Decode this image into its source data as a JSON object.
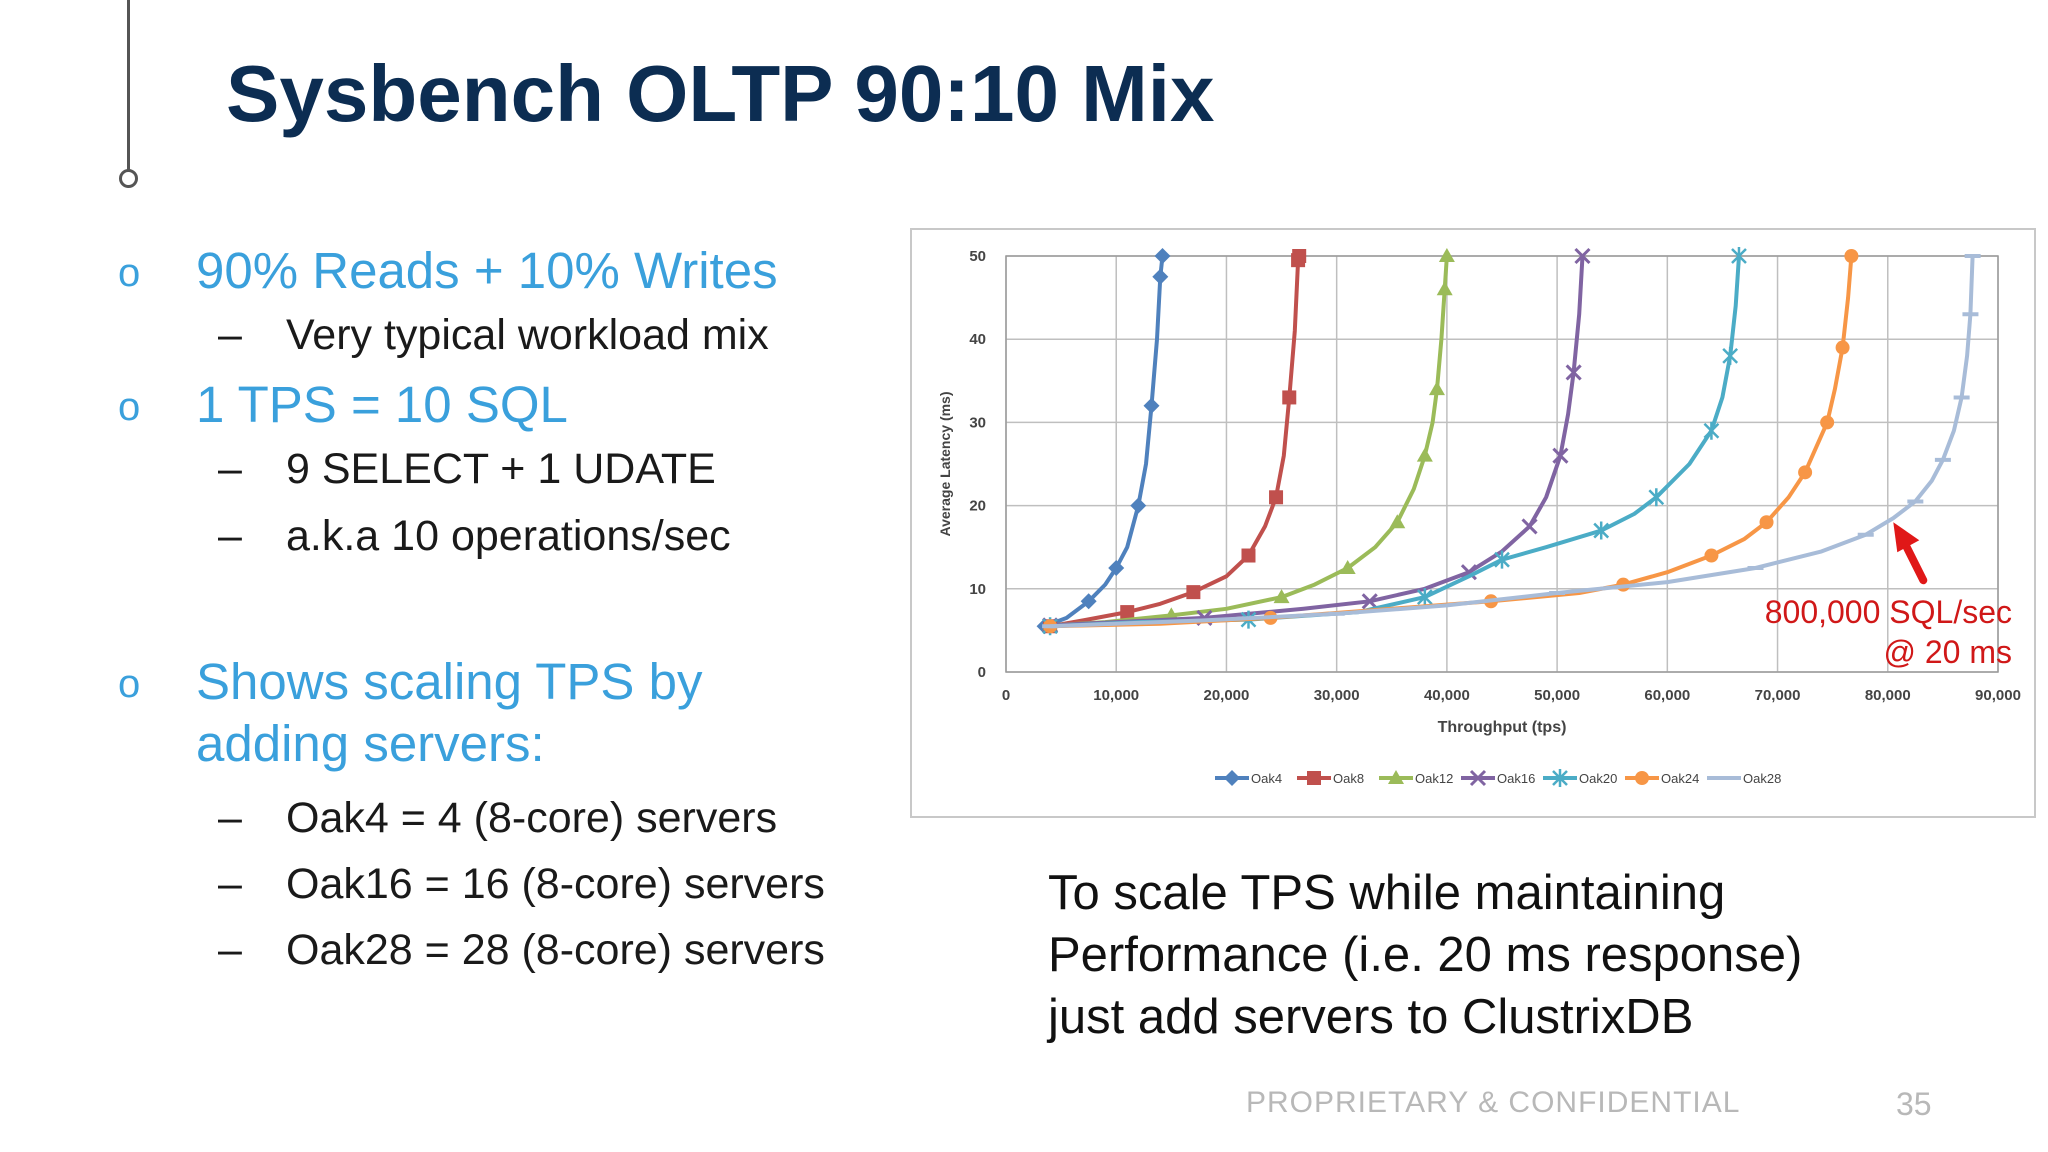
{
  "slide": {
    "title": "Sysbench OLTP 90:10 Mix",
    "bullets": [
      {
        "text": "90% Reads + 10% Writes",
        "subs": [
          "Very typical workload mix"
        ]
      },
      {
        "text": "1 TPS = 10 SQL",
        "subs": [
          "9 SELECT + 1 UDATE",
          "a.k.a 10 operations/sec"
        ]
      },
      {
        "text": "Shows scaling TPS by adding servers:",
        "subs": [
          "Oak4 = 4 (8-core) servers",
          "Oak16 = 16 (8-core) servers",
          "Oak28 = 28 (8-core) servers"
        ]
      }
    ],
    "bullet_marker": "o",
    "sub_marker": "–",
    "caption_lines": [
      "To scale TPS while maintaining",
      "Performance (i.e. 20 ms response)",
      "just add servers to ClustrixDB"
    ],
    "annotation_lines": [
      "800,000 SQL/sec",
      "@ 20 ms"
    ],
    "footer": "PROPRIETARY & CONFIDENTIAL",
    "page_number": "35",
    "colors": {
      "title": "#0c2d52",
      "bullet": "#3aa0dc",
      "annotation": "#d01818"
    }
  },
  "chart_data": {
    "type": "line",
    "xlabel": "Throughput (tps)",
    "ylabel": "Average Latency (ms)",
    "xlim": [
      0,
      90000
    ],
    "ylim": [
      0,
      50
    ],
    "xticks": [
      0,
      10000,
      20000,
      30000,
      40000,
      50000,
      60000,
      70000,
      80000,
      90000
    ],
    "xtick_labels": [
      "0",
      "10,000",
      "20,000",
      "30,000",
      "40,000",
      "50,000",
      "60,000",
      "70,000",
      "80,000",
      "90,000"
    ],
    "yticks": [
      0,
      10,
      20,
      30,
      40,
      50
    ],
    "ytick_labels": [
      "0",
      "10",
      "20",
      "30",
      "40",
      "50"
    ],
    "grid": true,
    "legend": "bottom",
    "series": [
      {
        "name": "Oak4",
        "color": "#4f81bd",
        "marker": "diamond",
        "points": [
          [
            3500,
            5.5
          ],
          [
            5500,
            6.5
          ],
          [
            7500,
            8.5
          ],
          [
            9000,
            10.5
          ],
          [
            10000,
            12.5
          ],
          [
            11000,
            15
          ],
          [
            12000,
            20
          ],
          [
            12700,
            25
          ],
          [
            13200,
            32
          ],
          [
            13700,
            40
          ],
          [
            14000,
            47.5
          ],
          [
            14200,
            50
          ]
        ]
      },
      {
        "name": "Oak8",
        "color": "#c0504d",
        "marker": "square",
        "points": [
          [
            4000,
            5.5
          ],
          [
            7000,
            6.2
          ],
          [
            11000,
            7.2
          ],
          [
            14000,
            8.2
          ],
          [
            17000,
            9.6
          ],
          [
            20000,
            11.5
          ],
          [
            22000,
            14
          ],
          [
            23500,
            17.5
          ],
          [
            24500,
            21
          ],
          [
            25200,
            26
          ],
          [
            25700,
            33
          ],
          [
            26200,
            41
          ],
          [
            26500,
            49.5
          ],
          [
            26600,
            50
          ]
        ]
      },
      {
        "name": "Oak12",
        "color": "#9bbb59",
        "marker": "triangle",
        "points": [
          [
            4000,
            5.6
          ],
          [
            9000,
            6
          ],
          [
            15000,
            6.8
          ],
          [
            20000,
            7.6
          ],
          [
            25000,
            9
          ],
          [
            28000,
            10.5
          ],
          [
            31000,
            12.5
          ],
          [
            33500,
            15
          ],
          [
            35500,
            18
          ],
          [
            37000,
            22
          ],
          [
            38000,
            26
          ],
          [
            38700,
            30
          ],
          [
            39100,
            34
          ],
          [
            39500,
            40
          ],
          [
            39800,
            46
          ],
          [
            40000,
            50
          ]
        ]
      },
      {
        "name": "Oak16",
        "color": "#8064a2",
        "marker": "x",
        "points": [
          [
            4000,
            5.6
          ],
          [
            10000,
            6
          ],
          [
            18000,
            6.5
          ],
          [
            27000,
            7.6
          ],
          [
            33000,
            8.5
          ],
          [
            38000,
            10
          ],
          [
            42000,
            12
          ],
          [
            45000,
            14.5
          ],
          [
            47500,
            17.5
          ],
          [
            49000,
            21
          ],
          [
            50300,
            26
          ],
          [
            51000,
            31
          ],
          [
            51500,
            36
          ],
          [
            52000,
            43
          ],
          [
            52300,
            50
          ]
        ]
      },
      {
        "name": "Oak20",
        "color": "#4bacc6",
        "marker": "star",
        "points": [
          [
            4000,
            5.5
          ],
          [
            12000,
            6
          ],
          [
            22000,
            6.3
          ],
          [
            32000,
            7.2
          ],
          [
            38000,
            9
          ],
          [
            42000,
            11.5
          ],
          [
            45000,
            13.5
          ],
          [
            49000,
            15
          ],
          [
            54000,
            17
          ],
          [
            57000,
            19
          ],
          [
            59000,
            21
          ],
          [
            62000,
            25
          ],
          [
            64000,
            29
          ],
          [
            65000,
            33
          ],
          [
            65700,
            38
          ],
          [
            66200,
            44
          ],
          [
            66500,
            50
          ]
        ]
      },
      {
        "name": "Oak24",
        "color": "#f79646",
        "marker": "circle",
        "points": [
          [
            4000,
            5.5
          ],
          [
            14000,
            5.8
          ],
          [
            24000,
            6.5
          ],
          [
            34000,
            7.5
          ],
          [
            44000,
            8.5
          ],
          [
            52000,
            9.5
          ],
          [
            56000,
            10.5
          ],
          [
            60000,
            12
          ],
          [
            64000,
            14
          ],
          [
            67000,
            16
          ],
          [
            69000,
            18
          ],
          [
            71000,
            21
          ],
          [
            72500,
            24
          ],
          [
            73500,
            27
          ],
          [
            74500,
            30
          ],
          [
            75200,
            34
          ],
          [
            75900,
            39
          ],
          [
            76400,
            45
          ],
          [
            76700,
            50
          ]
        ]
      },
      {
        "name": "Oak28",
        "color": "#a8bcd8",
        "marker": "dash",
        "points": [
          [
            4000,
            5.5
          ],
          [
            18000,
            6.2
          ],
          [
            30000,
            7
          ],
          [
            40000,
            8
          ],
          [
            50000,
            9.5
          ],
          [
            60000,
            10.8
          ],
          [
            68000,
            12.5
          ],
          [
            74000,
            14.5
          ],
          [
            78000,
            16.5
          ],
          [
            80500,
            18.5
          ],
          [
            82500,
            20.5
          ],
          [
            84000,
            23
          ],
          [
            85000,
            25.5
          ],
          [
            86000,
            29
          ],
          [
            86700,
            33
          ],
          [
            87200,
            38
          ],
          [
            87500,
            43
          ],
          [
            87700,
            50
          ]
        ]
      }
    ]
  }
}
